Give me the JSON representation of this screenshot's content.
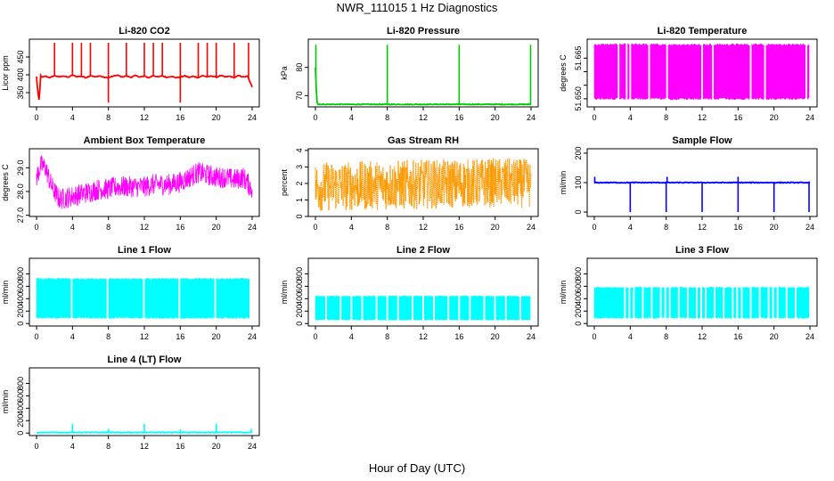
{
  "figure": {
    "title": "NWR_111015  1 Hz Diagnostics",
    "xlabel": "Hour of Day (UTC)"
  },
  "chart_data": [
    {
      "type": "line",
      "title": "Li-820 CO2",
      "ylabel": "Licor ppm",
      "color": "#ff0000",
      "xlim": [
        0,
        24
      ],
      "ylim": [
        310,
        500
      ],
      "xticks": [
        0,
        4,
        8,
        12,
        16,
        20,
        24
      ],
      "yticks": [
        350,
        400,
        450
      ],
      "series": [
        {
          "x": [
            0,
            0.15,
            0.3,
            0.45,
            0.6,
            1.0,
            1.5,
            2.0,
            2.5,
            3.0,
            3.5,
            4.0,
            4.5,
            5.0,
            5.5,
            6.0,
            6.5,
            7.0,
            7.5,
            8.0,
            8.5,
            9.0,
            9.5,
            10.0,
            10.5,
            11.0,
            11.5,
            12.0,
            12.5,
            13.0,
            13.5,
            14.0,
            14.5,
            15.0,
            15.5,
            16.0,
            16.5,
            17.0,
            17.5,
            18.0,
            18.5,
            19.0,
            19.5,
            20.0,
            20.5,
            21.0,
            21.5,
            22.0,
            22.5,
            23.0,
            23.5,
            24.0
          ],
          "y": [
            395,
            350,
            325,
            398,
            393,
            396,
            392,
            398,
            394,
            397,
            393,
            399,
            395,
            396,
            392,
            398,
            394,
            397,
            393,
            392,
            396,
            399,
            394,
            397,
            393,
            398,
            394,
            396,
            392,
            398,
            394,
            397,
            393,
            396,
            392,
            394,
            397,
            393,
            396,
            392,
            398,
            394,
            397,
            393,
            398,
            394,
            396,
            392,
            398,
            394,
            396,
            365
          ]
        }
      ],
      "spikes_up": [
        2.0,
        4.0,
        5.0,
        6.0,
        8.0,
        10.0,
        12.0,
        13.0,
        14.0,
        16.0,
        18.0,
        19.0,
        20.0,
        22.0,
        23.6
      ],
      "spike_up_value": 490,
      "spikes_down": [
        8.0,
        16.0
      ],
      "spike_down_value": 322
    },
    {
      "type": "line",
      "title": "Li-820 Pressure",
      "ylabel": "kPa",
      "color": "#00cc00",
      "xlim": [
        0,
        24
      ],
      "ylim": [
        66.0,
        90.0
      ],
      "xticks": [
        0,
        4,
        8,
        12,
        16,
        20,
        24
      ],
      "yticks": [
        70,
        80
      ],
      "series": [
        {
          "x": [
            0,
            0.1,
            0.2,
            0.4,
            8.0,
            16.0,
            24.0
          ],
          "y": [
            80.0,
            72.0,
            67.0,
            66.9,
            66.9,
            66.9,
            66.9
          ]
        }
      ],
      "spikes_up": [
        0.05,
        8.0,
        16.0,
        23.95
      ],
      "spike_up_value": 88.0
    },
    {
      "type": "area",
      "title": "Li-820 Temperature",
      "ylabel": "degrees C",
      "color": "#ff00ff",
      "xlim": [
        0,
        24
      ],
      "ylim": [
        51.647,
        51.672
      ],
      "xticks": [
        0,
        4,
        8,
        12,
        16,
        20,
        24
      ],
      "yticks": [
        51.65,
        51.655,
        51.66,
        51.665
      ],
      "ytick_labels": [
        "51.650",
        "",
        "",
        "51.665"
      ],
      "band": {
        "low": 51.65,
        "high": 51.67
      },
      "gaps": [
        2.7,
        3.6,
        4.0,
        6.1,
        8.1,
        12.0,
        13.2,
        17.4,
        19.0,
        23.6
      ]
    },
    {
      "type": "line",
      "title": "Ambient Box Temperature",
      "ylabel": "degrees C",
      "color": "#ff00ff",
      "xlim": [
        0,
        24
      ],
      "ylim": [
        26.95,
        29.8
      ],
      "xticks": [
        0,
        4,
        8,
        12,
        16,
        20,
        24
      ],
      "yticks": [
        27.0,
        28.0,
        29.0
      ],
      "ytick_labels": [
        "27.0",
        "28.0",
        "29.0"
      ],
      "series": [
        {
          "x": [
            0,
            0.5,
            1.0,
            1.5,
            2.0,
            2.5,
            3.0,
            4.0,
            5.0,
            6.0,
            7.0,
            8.0,
            9.0,
            10.0,
            11.0,
            12.0,
            13.0,
            14.0,
            15.0,
            16.0,
            17.0,
            18.0,
            19.0,
            20.0,
            21.0,
            22.0,
            23.0,
            24.0
          ],
          "y": [
            28.6,
            29.1,
            29.0,
            28.4,
            28.0,
            27.7,
            27.7,
            27.8,
            27.9,
            28.0,
            28.1,
            28.1,
            28.2,
            28.2,
            28.2,
            28.2,
            28.3,
            28.3,
            28.3,
            28.4,
            28.6,
            28.8,
            28.7,
            28.6,
            28.6,
            28.5,
            28.6,
            28.1
          ]
        }
      ],
      "noise_amplitude": 0.45
    },
    {
      "type": "scatter",
      "title": "Gas Stream RH",
      "ylabel": "percent",
      "color": "#ff9900",
      "xlim": [
        0,
        24
      ],
      "ylim": [
        0,
        4.1
      ],
      "xticks": [
        0,
        4,
        8,
        12,
        16,
        20,
        24
      ],
      "yticks": [
        0,
        1,
        2,
        3,
        4
      ],
      "series": [
        {
          "x": [
            0,
            4,
            8,
            12,
            16,
            20,
            24
          ],
          "y": [
            1.8,
            1.85,
            1.9,
            1.95,
            2.0,
            2.05,
            2.0
          ]
        }
      ],
      "noise_amplitude": 1.5
    },
    {
      "type": "line",
      "title": "Sample Flow",
      "ylabel": "ml/min",
      "color": "#0000ff",
      "xlim": [
        0,
        24
      ],
      "ylim": [
        -15,
        215
      ],
      "xticks": [
        0,
        4,
        8,
        12,
        16,
        20,
        24
      ],
      "yticks": [
        0,
        100,
        200
      ],
      "series": [
        {
          "x": [
            0,
            24
          ],
          "y": [
            100,
            100
          ]
        }
      ],
      "spikes_down": [
        4.0,
        8.0,
        12.0,
        16.0,
        20.0,
        23.9
      ],
      "spike_down_value": 0,
      "spikes_up": [
        0.05,
        8.1,
        16.0
      ],
      "spike_up_value": 120
    },
    {
      "type": "area",
      "title": "Line 1 Flow",
      "ylabel": "ml/min",
      "color": "#00ffff",
      "xlim": [
        0,
        24
      ],
      "ylim": [
        -40,
        1050
      ],
      "xticks": [
        0,
        4,
        8,
        12,
        16,
        20,
        24
      ],
      "yticks": [
        0,
        200,
        400,
        600,
        800
      ],
      "band": {
        "low": 90,
        "high": 720
      },
      "gaps": [
        3.9,
        7.9,
        11.95,
        15.9,
        19.9,
        23.8
      ]
    },
    {
      "type": "area",
      "title": "Line 2 Flow",
      "ylabel": "ml/min",
      "color": "#00ffff",
      "xlim": [
        0,
        24
      ],
      "ylim": [
        -40,
        1050
      ],
      "xticks": [
        0,
        4,
        8,
        12,
        16,
        20,
        24
      ],
      "yticks": [
        0,
        200,
        400,
        600,
        800
      ],
      "band": {
        "low": 60,
        "high": 440
      },
      "gaps": [
        1.2,
        2.8,
        4.0,
        5.2,
        6.8,
        8.0,
        9.2,
        10.8,
        12.0,
        13.2,
        14.8,
        16.0,
        17.2,
        18.8,
        20.0,
        21.2,
        22.8
      ]
    },
    {
      "type": "area",
      "title": "Line 3 Flow",
      "ylabel": "ml/min",
      "color": "#00ffff",
      "xlim": [
        0,
        24
      ],
      "ylim": [
        -40,
        1050
      ],
      "xticks": [
        0,
        4,
        8,
        12,
        16,
        20,
        24
      ],
      "yticks": [
        0,
        200,
        400,
        600,
        800
      ],
      "band": {
        "low": 90,
        "high": 580
      },
      "gaps": [
        3.4,
        3.9,
        4.4,
        5.4,
        6.4,
        7.4,
        7.9,
        8.4,
        9.4,
        10.4,
        11.4,
        11.9,
        12.4,
        13.4,
        14.4,
        15.4,
        15.9,
        16.4,
        17.4,
        18.4,
        19.4,
        19.9,
        20.4,
        21.4,
        22.4
      ]
    },
    {
      "type": "line",
      "title": "Line 4 (LT) Flow",
      "ylabel": "ml/min",
      "color": "#00ffff",
      "xlim": [
        0,
        24
      ],
      "ylim": [
        -40,
        1050
      ],
      "xticks": [
        0,
        4,
        8,
        12,
        16,
        20,
        24
      ],
      "yticks": [
        0,
        200,
        400,
        600,
        800
      ],
      "series": [
        {
          "x": [
            0,
            24
          ],
          "y": [
            10,
            10
          ]
        }
      ],
      "spikes_up": [
        4.0,
        8.0,
        12.0,
        16.0,
        20.0,
        23.9
      ],
      "spike_up_values": [
        150,
        70,
        150,
        60,
        150,
        70
      ]
    }
  ]
}
